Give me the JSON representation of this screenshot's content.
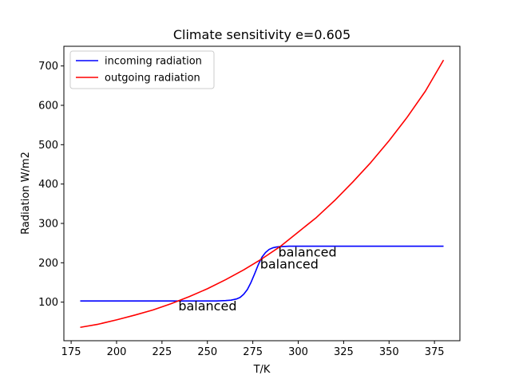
{
  "chart_data": {
    "type": "line",
    "title": "Climate sensitivity e=0.605",
    "xlabel": "T/K",
    "ylabel": "Radiation W/m2",
    "xlim": [
      171,
      389
    ],
    "ylim": [
      2,
      750
    ],
    "xticks": [
      175,
      200,
      225,
      250,
      275,
      300,
      325,
      350,
      375
    ],
    "yticks": [
      100,
      200,
      300,
      400,
      500,
      600,
      700
    ],
    "grid": false,
    "legend": "top-left",
    "series": [
      {
        "name": "incoming radiation",
        "color": "#0000ff",
        "x": [
          180,
          200,
          220,
          240,
          250,
          255,
          260,
          263,
          266,
          268,
          270,
          272,
          274,
          276,
          278,
          280,
          282,
          284,
          286,
          288,
          290,
          295,
          300,
          320,
          340,
          360,
          380
        ],
        "y": [
          103,
          103,
          103,
          103,
          103,
          103,
          104,
          105,
          108,
          112,
          120,
          132,
          150,
          172,
          195,
          214,
          226,
          234,
          238,
          240,
          241,
          242,
          242,
          242,
          242,
          242,
          242
        ]
      },
      {
        "name": "outgoing radiation",
        "color": "#ff0000",
        "x": [
          180,
          190,
          200,
          210,
          220,
          230,
          240,
          250,
          260,
          270,
          280,
          290,
          300,
          310,
          320,
          330,
          340,
          350,
          360,
          370,
          380
        ],
        "y": [
          36,
          44,
          55,
          67,
          80,
          96,
          114,
          134,
          157,
          182,
          210,
          241,
          278,
          315,
          358,
          405,
          455,
          510,
          570,
          636,
          715
        ]
      }
    ],
    "annotations": [
      {
        "text": "balanced",
        "x": 234,
        "y": 103
      },
      {
        "text": "balanced",
        "x": 279,
        "y": 210
      },
      {
        "text": "balanced",
        "x": 289,
        "y": 240
      }
    ]
  }
}
